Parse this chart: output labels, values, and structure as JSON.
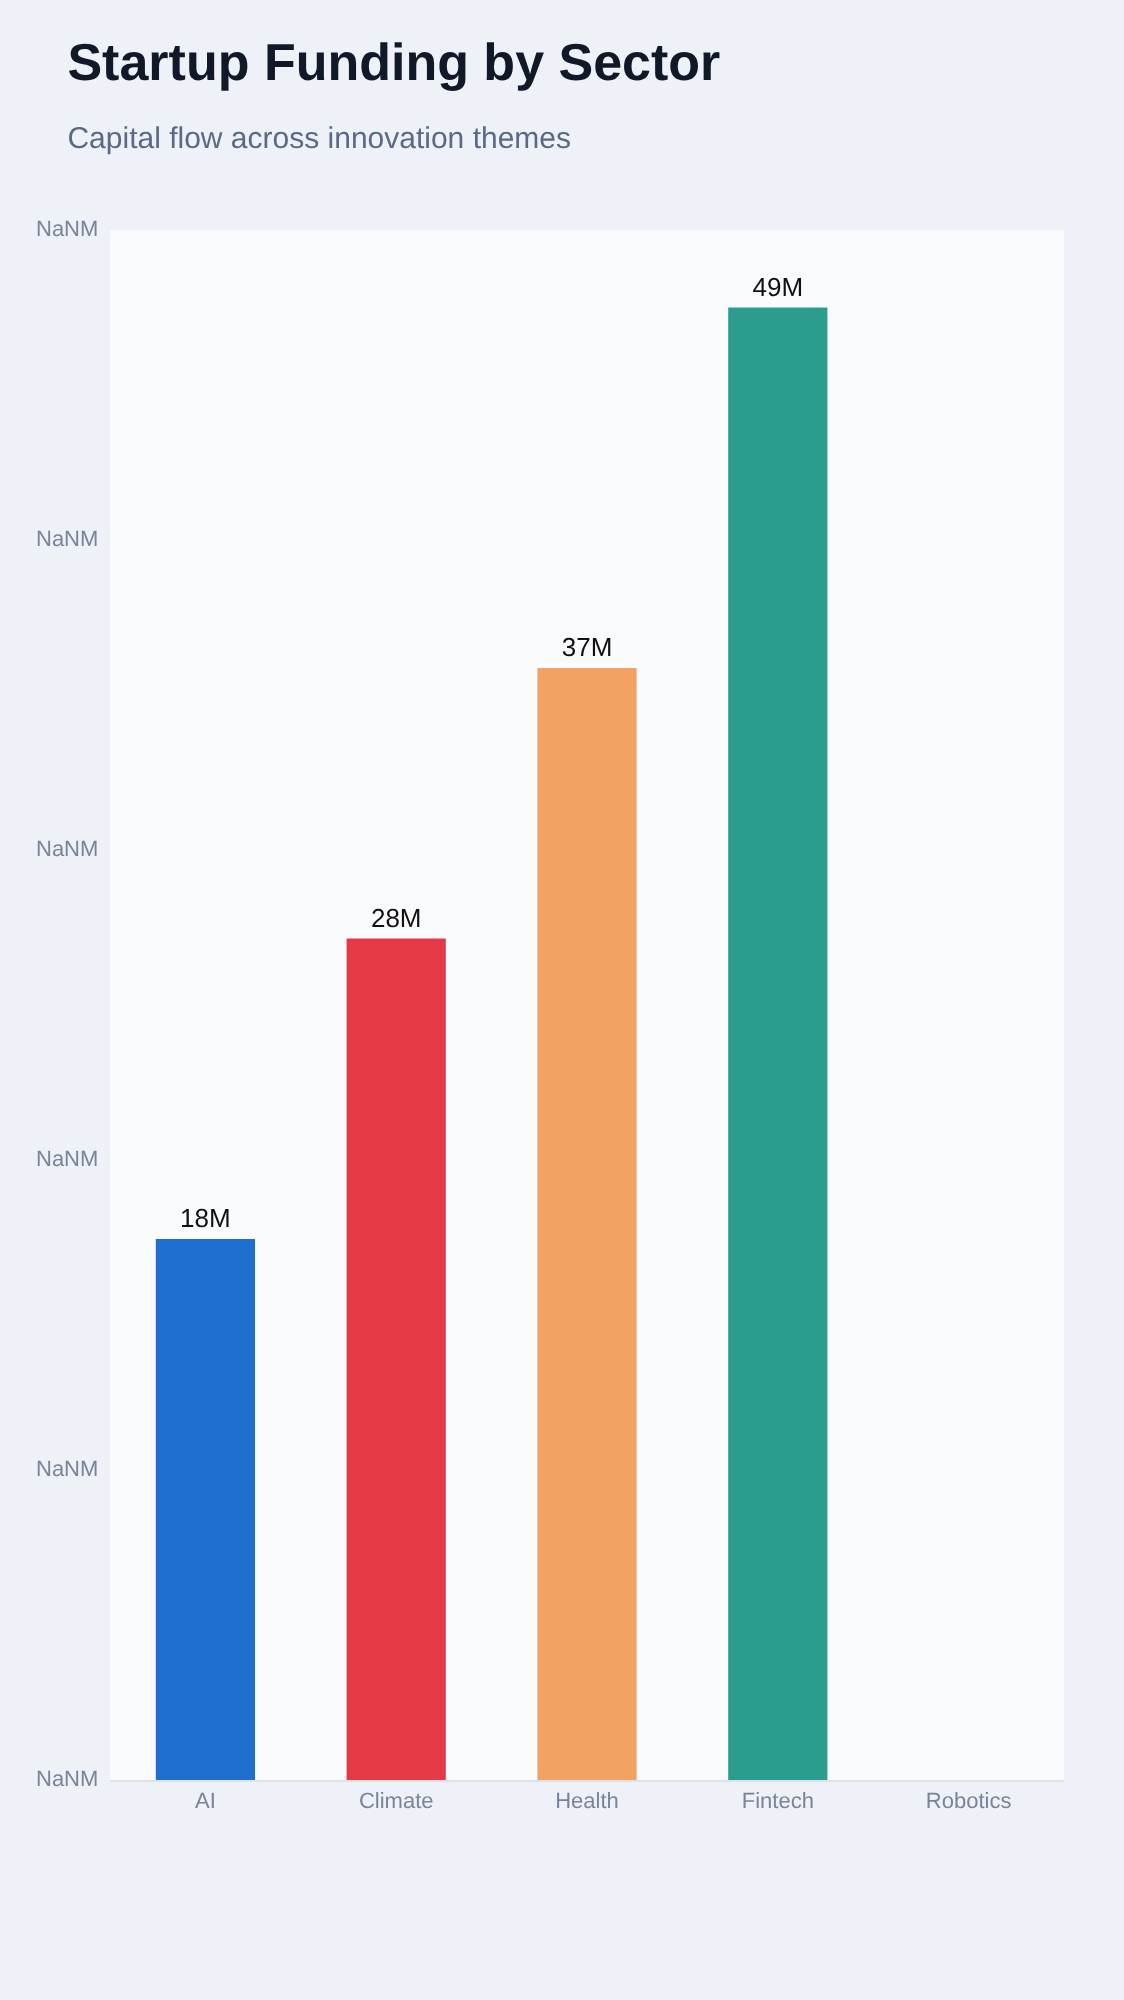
{
  "chart_data": {
    "type": "bar",
    "title": "Startup Funding by Sector",
    "subtitle": "Capital flow across innovation themes",
    "categories": [
      "AI",
      "Climate",
      "Health",
      "Fintech",
      "Robotics"
    ],
    "values": [
      18,
      28,
      37,
      49,
      null
    ],
    "colors": [
      "#1e6fd0",
      "#e63946",
      "#f4a261",
      "#2a9d8f",
      "#8ab4f8"
    ],
    "value_labels": [
      "18M",
      "28M",
      "37M",
      "49M",
      null
    ],
    "annotations": [
      "NaNM",
      "NaNM",
      "NaNM",
      "NaNM",
      "NaNM",
      "NaNM"
    ],
    "legend": false
  }
}
